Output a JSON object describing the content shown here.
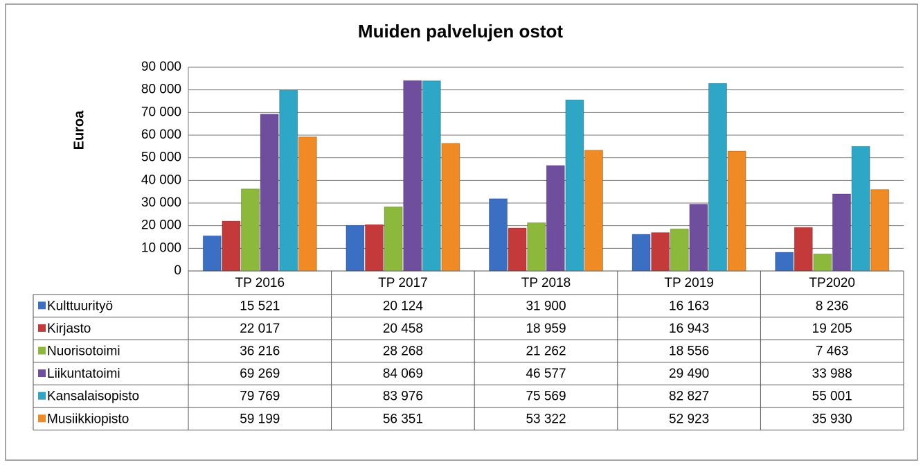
{
  "chart_data": {
    "type": "bar",
    "title": "Muiden palvelujen ostot",
    "y_label": "Euroa",
    "categories": [
      "TP 2016",
      "TP 2017",
      "TP 2018",
      "TP 2019",
      "TP2020"
    ],
    "series": [
      {
        "name": "Kulttuurityö",
        "color": "#3b6fc3",
        "values": [
          15521,
          20124,
          31900,
          16163,
          8236
        ],
        "value_labels": [
          "15 521",
          "20 124",
          "31 900",
          "16 163",
          "8 236"
        ]
      },
      {
        "name": "Kirjasto",
        "color": "#c43a3a",
        "values": [
          22017,
          20458,
          18959,
          16943,
          19205
        ],
        "value_labels": [
          "22 017",
          "20 458",
          "18 959",
          "16 943",
          "19 205"
        ]
      },
      {
        "name": "Nuorisotoimi",
        "color": "#8cb83c",
        "values": [
          36216,
          28268,
          21262,
          18556,
          7463
        ],
        "value_labels": [
          "36 216",
          "28 268",
          "21 262",
          "18 556",
          "7 463"
        ]
      },
      {
        "name": "Liikuntatoimi",
        "color": "#6f4e9e",
        "values": [
          69269,
          84069,
          46577,
          29490,
          33988
        ],
        "value_labels": [
          "69 269",
          "84 069",
          "46 577",
          "29 490",
          "33 988"
        ]
      },
      {
        "name": "Kansalaisopisto",
        "color": "#2ea6c6",
        "values": [
          79769,
          83976,
          75569,
          82827,
          55001
        ],
        "value_labels": [
          "79 769",
          "83 976",
          "75 569",
          "82 827",
          "55 001"
        ]
      },
      {
        "name": "Musiikkiopisto",
        "color": "#ef8a25",
        "values": [
          59199,
          56351,
          53322,
          52923,
          35930
        ],
        "value_labels": [
          "59 199",
          "56 351",
          "53 322",
          "52 923",
          "35 930"
        ]
      }
    ],
    "ylim": [
      0,
      90000
    ],
    "yticks": [
      0,
      {
        "value": 10000,
        "label": "10 000"
      },
      {
        "value": 20000,
        "label": "20 000"
      },
      {
        "value": 30000,
        "label": "30 000"
      },
      {
        "value": 40000,
        "label": "40 000"
      },
      {
        "value": 50000,
        "label": "50 000"
      },
      {
        "value": 60000,
        "label": "60 000"
      },
      {
        "value": 70000,
        "label": "70 000"
      },
      {
        "value": 80000,
        "label": "80 000"
      },
      {
        "value": 90000,
        "label": "90 000"
      }
    ],
    "grid": true
  }
}
